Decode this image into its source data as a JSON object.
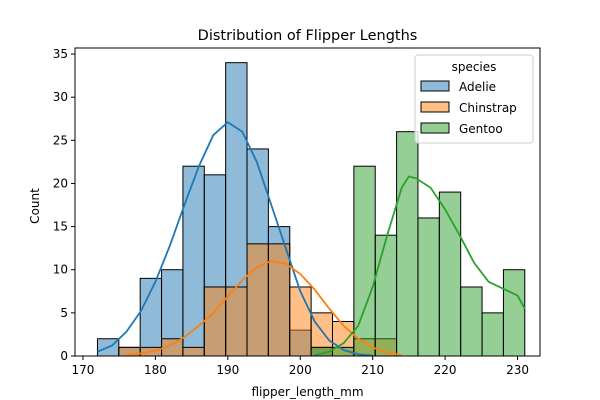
{
  "chart_data": {
    "type": "histogram",
    "title": "Distribution of Flipper Lengths",
    "xlabel": "flipper_length_mm",
    "ylabel": "Count",
    "xlim": [
      168.9,
      233.1
    ],
    "ylim": [
      0,
      35.7
    ],
    "xticks": [
      170,
      180,
      190,
      200,
      210,
      220,
      230
    ],
    "yticks": [
      0,
      5,
      10,
      15,
      20,
      25,
      30,
      35
    ],
    "grid": false,
    "legend": {
      "title": "species",
      "placement": "top-right"
    },
    "bin_edges": [
      172.0,
      174.95,
      177.9,
      180.85,
      183.8,
      186.75,
      189.7,
      192.65,
      195.6,
      198.55,
      201.5,
      204.45,
      207.4,
      210.35,
      213.3,
      216.25,
      219.2,
      222.15,
      225.1,
      228.05,
      231.0
    ],
    "series": [
      {
        "name": "Adelie",
        "color": "#1f77b4",
        "counts": [
          2,
          1,
          9,
          10,
          22,
          21,
          34,
          24,
          15,
          3,
          1,
          0,
          0,
          0,
          0,
          0,
          0,
          0,
          0,
          0
        ],
        "kde": [
          [
            172,
            0.5
          ],
          [
            174,
            1.2
          ],
          [
            176,
            2.8
          ],
          [
            178,
            5.2
          ],
          [
            180,
            8.6
          ],
          [
            182,
            12.8
          ],
          [
            184,
            17.5
          ],
          [
            186,
            22.0
          ],
          [
            188,
            25.6
          ],
          [
            190,
            27.1
          ],
          [
            192,
            26.0
          ],
          [
            194,
            22.5
          ],
          [
            196,
            17.5
          ],
          [
            198,
            12.5
          ],
          [
            200,
            7.5
          ],
          [
            202,
            4.0
          ],
          [
            204,
            1.8
          ],
          [
            206,
            0.7
          ],
          [
            208,
            0.2
          ],
          [
            210,
            0.05
          ]
        ]
      },
      {
        "name": "Chinstrap",
        "color": "#ff7f0e",
        "counts": [
          0,
          1,
          1,
          2,
          1,
          8,
          8,
          13,
          13,
          8,
          5,
          4,
          2,
          2,
          0,
          0,
          0,
          0,
          0,
          0
        ],
        "kde": [
          [
            176,
            0.1
          ],
          [
            178,
            0.3
          ],
          [
            180,
            0.6
          ],
          [
            182,
            1.2
          ],
          [
            184,
            2.2
          ],
          [
            186,
            3.5
          ],
          [
            188,
            5.0
          ],
          [
            190,
            6.9
          ],
          [
            192,
            8.8
          ],
          [
            194,
            10.3
          ],
          [
            196,
            11.0
          ],
          [
            198,
            10.7
          ],
          [
            200,
            9.5
          ],
          [
            202,
            7.7
          ],
          [
            204,
            5.5
          ],
          [
            206,
            3.5
          ],
          [
            208,
            2.0
          ],
          [
            210,
            1.0
          ],
          [
            212,
            0.4
          ],
          [
            214,
            0.1
          ]
        ]
      },
      {
        "name": "Gentoo",
        "color": "#2ca02c",
        "counts": [
          0,
          0,
          0,
          0,
          0,
          0,
          0,
          0,
          0,
          0,
          1,
          1,
          22,
          14,
          26,
          16,
          19,
          8,
          5,
          10
        ],
        "kde": [
          [
            202,
            0.1
          ],
          [
            204,
            0.5
          ],
          [
            206,
            1.5
          ],
          [
            208,
            3.5
          ],
          [
            210,
            8.0
          ],
          [
            212,
            14.0
          ],
          [
            214,
            19.5
          ],
          [
            215,
            20.8
          ],
          [
            216,
            20.6
          ],
          [
            218,
            19.5
          ],
          [
            220,
            17.0
          ],
          [
            222,
            14.0
          ],
          [
            224,
            10.8
          ],
          [
            226,
            8.6
          ],
          [
            228,
            7.8
          ],
          [
            230,
            7.0
          ],
          [
            231,
            5.5
          ]
        ]
      }
    ]
  }
}
